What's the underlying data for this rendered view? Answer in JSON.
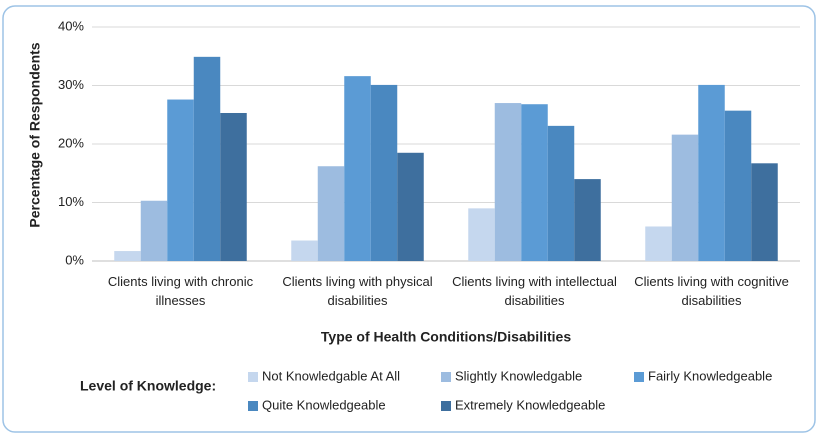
{
  "chart_data": {
    "type": "bar",
    "x_label": "Type of Health Conditions/Disabilities",
    "y_label": "Percentage of Respondents",
    "legend_title": "Level of Knowledge:",
    "legend": "bottom",
    "grid": true,
    "categories": [
      "Clients living with chronic illnesses",
      "Clients living with physical disabilities",
      "Clients living with intellectual disabilities",
      "Clients living with cognitive disabilities"
    ],
    "ylim": [
      0,
      40
    ],
    "yticks": [
      {
        "value": 0,
        "label": "0%"
      },
      {
        "value": 10,
        "label": "10%"
      },
      {
        "value": 20,
        "label": "20%"
      },
      {
        "value": 30,
        "label": "30%"
      },
      {
        "value": 40,
        "label": "40%"
      }
    ],
    "series": [
      {
        "name": "Not Knowledgable At All",
        "color": "#c5d7ee",
        "values": [
          1.7,
          3.5,
          9.0,
          5.9
        ]
      },
      {
        "name": "Slightly Knowledgable",
        "color": "#9dbce0",
        "values": [
          10.3,
          16.2,
          27.0,
          21.6
        ]
      },
      {
        "name": "Fairly Knowledgeable",
        "color": "#5b9bd5",
        "values": [
          27.6,
          31.6,
          26.8,
          30.1
        ]
      },
      {
        "name": "Quite Knowledgeable",
        "color": "#4a88c0",
        "values": [
          34.9,
          30.1,
          23.1,
          25.7
        ]
      },
      {
        "name": "Extremely Knowledgeable",
        "color": "#3e6f9e",
        "values": [
          25.3,
          18.5,
          14.0,
          16.7
        ]
      }
    ]
  }
}
